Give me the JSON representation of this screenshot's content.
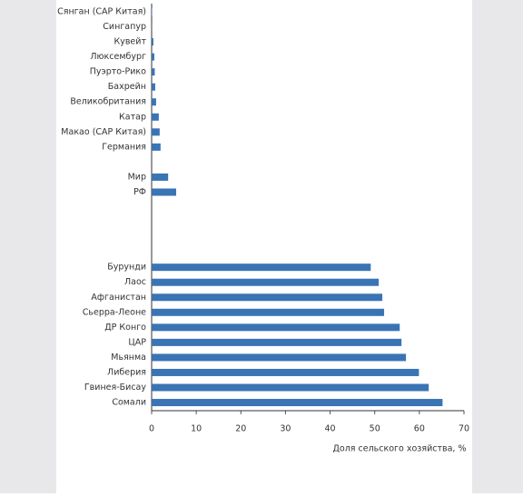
{
  "chart_data": {
    "type": "hbar",
    "x_label": "Доля сельского хозяйства, %",
    "categories": [
      "Сянган (САР Китая)",
      "Сингапур",
      "Кувейт",
      "Люксембург",
      "Пуэрто-Рико",
      "Бахрейн",
      "Великобритания",
      "Катар",
      "Макао (САР Китая)",
      "Германия",
      null,
      "Мир",
      "РФ",
      null,
      null,
      null,
      null,
      "Бурунди",
      "Лаос",
      "Афганистан",
      "Сьерра-Леоне",
      "ДР Конго",
      "ЦАР",
      "Мьянма",
      "Либерия",
      "Гвинея-Бисау",
      "Сомали"
    ],
    "values": [
      0.1,
      0.03,
      0.4,
      0.6,
      0.7,
      0.8,
      1.0,
      1.6,
      1.8,
      2.0,
      null,
      3.7,
      5.5,
      null,
      null,
      null,
      null,
      49.1,
      50.9,
      51.7,
      52.1,
      55.6,
      56.0,
      57.0,
      59.9,
      62.1,
      65.2
    ],
    "color": "#3a74b4",
    "xlim": [
      0,
      70
    ],
    "xticks": [
      0,
      10,
      20,
      30,
      40,
      50,
      60,
      70
    ]
  }
}
